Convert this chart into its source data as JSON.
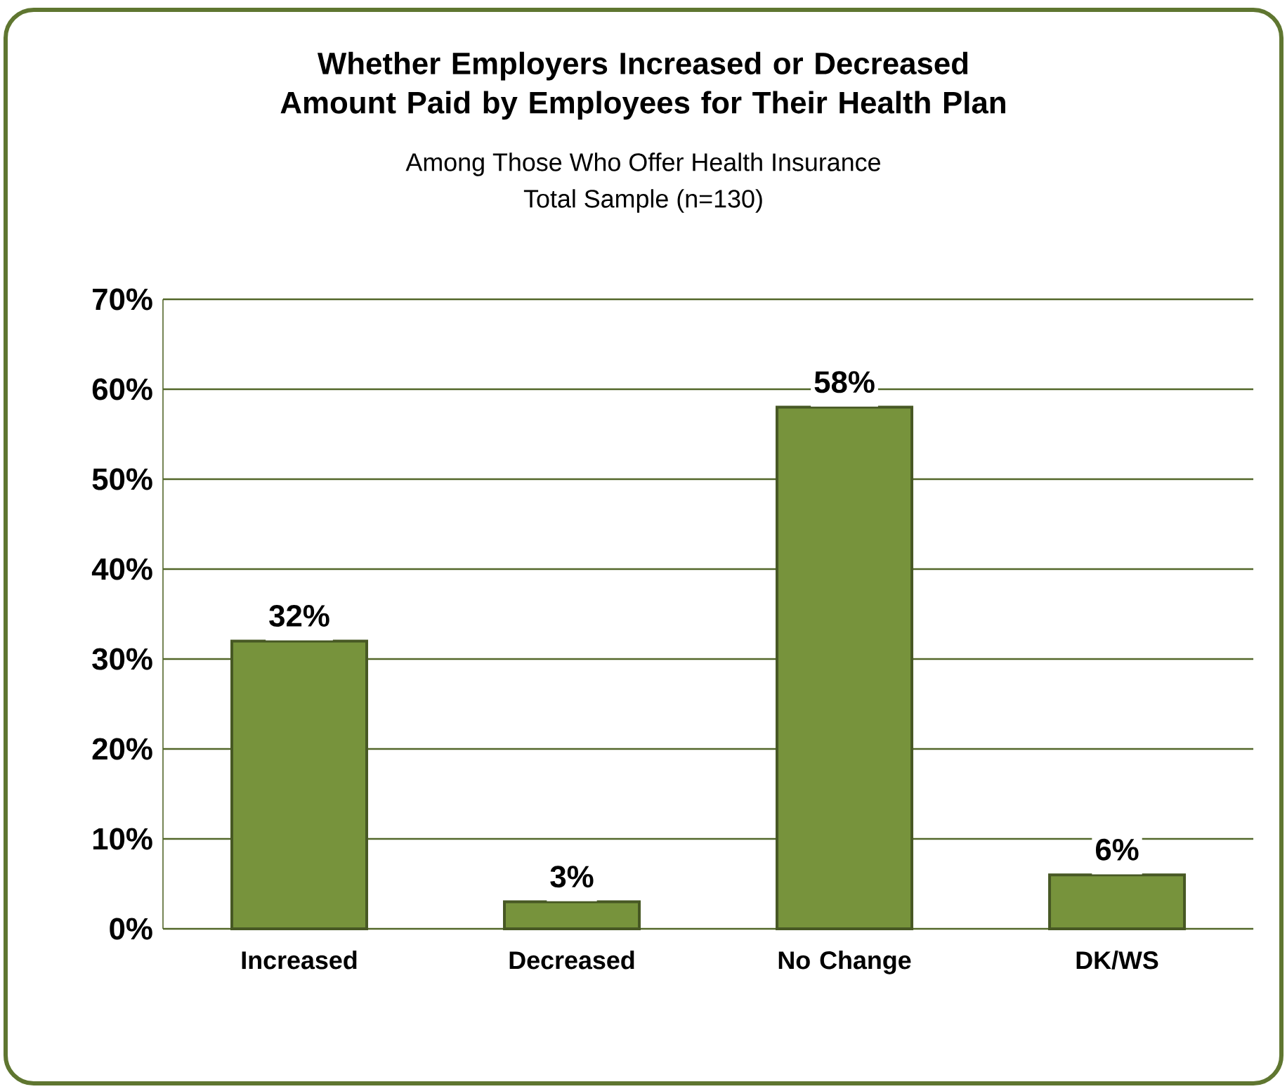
{
  "chart_data": {
    "type": "bar",
    "title": "Whether Employers Increased or Decreased Amount Paid by Employees for Their Health Plan",
    "subtitle": "Among Those Who Offer Health Insurance",
    "annotations": [
      "Total Sample (n=130)"
    ],
    "categories": [
      "Increased",
      "Decreased",
      "No Change",
      "DK/WS"
    ],
    "values": [
      32,
      3,
      58,
      6
    ],
    "value_labels": [
      "32%",
      "3%",
      "58%",
      "6%"
    ],
    "color": "#77933c",
    "ylim": [
      0,
      70
    ],
    "yticks": [
      {
        "value": 0,
        "label": "0%"
      },
      {
        "value": 10,
        "label": "10%"
      },
      {
        "value": 20,
        "label": "20%"
      },
      {
        "value": 30,
        "label": "30%"
      },
      {
        "value": 40,
        "label": "40%"
      },
      {
        "value": 50,
        "label": "50%"
      },
      {
        "value": 60,
        "label": "60%"
      },
      {
        "value": 70,
        "label": "70%"
      }
    ],
    "grid": "y"
  }
}
